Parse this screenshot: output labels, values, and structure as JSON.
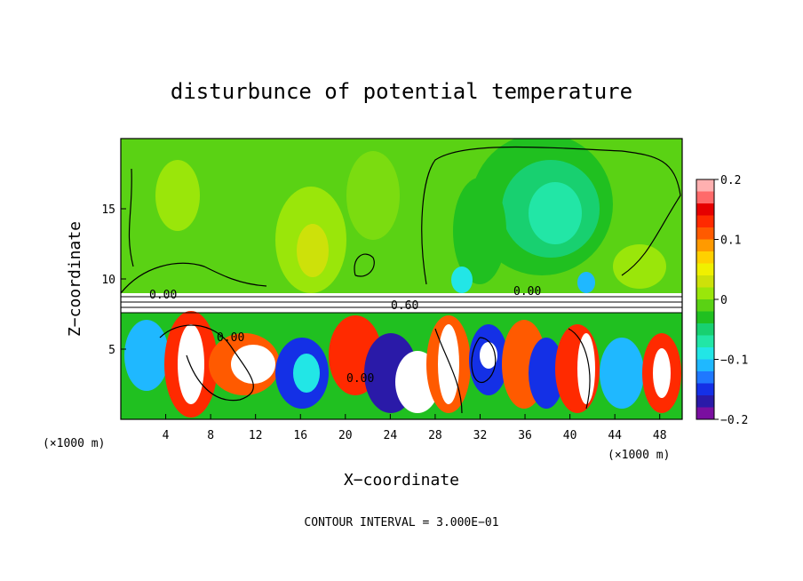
{
  "chart_data": {
    "type": "heatmap",
    "title": "disturbunce of potential temperature",
    "xlabel": "X−coordinate",
    "ylabel": "Z−coordinate",
    "x_unit_label": "(×1000 m)",
    "xlim": [
      0,
      50
    ],
    "ylim": [
      0,
      20
    ],
    "x_ticks": [
      4,
      8,
      12,
      16,
      20,
      24,
      28,
      32,
      36,
      40,
      44,
      48
    ],
    "x_tick_labels": [
      "4",
      "8",
      "12",
      "16",
      "20",
      "24",
      "28",
      "32",
      "36",
      "40",
      "44",
      "48"
    ],
    "y_ticks": [
      5,
      10,
      15
    ],
    "y_tick_labels": [
      "5",
      "10",
      "15"
    ],
    "colorbar": {
      "min": -0.2,
      "max": 0.2,
      "ticks": [
        0.2,
        0.1,
        0,
        -0.1,
        -0.2
      ],
      "tick_labels": [
        "0.2",
        "0.1",
        "0",
        "−0.1",
        "−0.2"
      ],
      "colors": [
        "#7a0fa0",
        "#2a1aa8",
        "#1430e6",
        "#1f78ff",
        "#1fb8ff",
        "#22e6e6",
        "#22e6a6",
        "#18d070",
        "#20c020",
        "#5ad214",
        "#9ae60a",
        "#cde10a",
        "#f0f000",
        "#ffd000",
        "#ff9a00",
        "#ff5a00",
        "#ff2a00",
        "#e60000",
        "#ff6a6a",
        "#ffb0b0"
      ]
    },
    "contour_labels": [
      "0.00",
      "0.60"
    ],
    "contour_interval_text": "CONTOUR INTERVAL = 3.000E−01",
    "grid": false
  }
}
